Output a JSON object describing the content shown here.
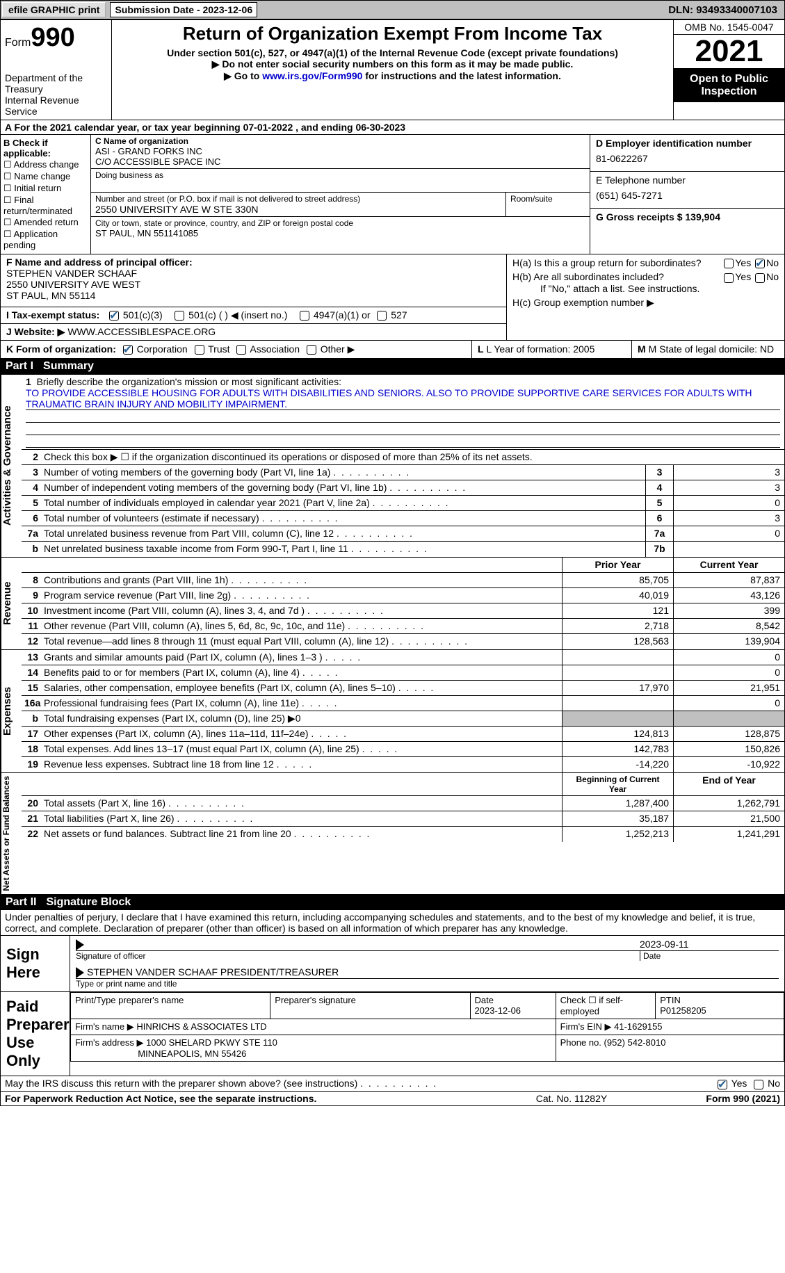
{
  "topbar": {
    "efile": "efile GRAPHIC print",
    "submission_label": "Submission Date - 2023-12-06",
    "dln": "DLN: 93493340007103"
  },
  "header": {
    "form_prefix": "Form",
    "form_number": "990",
    "dept": "Department of the Treasury",
    "irs": "Internal Revenue Service",
    "title": "Return of Organization Exempt From Income Tax",
    "subtitle": "Under section 501(c), 527, or 4947(a)(1) of the Internal Revenue Code (except private foundations)",
    "note1": "▶ Do not enter social security numbers on this form as it may be made public.",
    "note2_pre": "▶ Go to ",
    "note2_link": "www.irs.gov/Form990",
    "note2_post": " for instructions and the latest information.",
    "omb": "OMB No. 1545-0047",
    "year": "2021",
    "open": "Open to Public Inspection"
  },
  "row_a": "A For the 2021 calendar year, or tax year beginning 07-01-2022    , and ending 06-30-2023",
  "col_b": {
    "label": "B Check if applicable:",
    "items": [
      "Address change",
      "Name change",
      "Initial return",
      "Final return/terminated",
      "Amended return",
      "Application pending"
    ]
  },
  "col_c": {
    "name_label": "C Name of organization",
    "name1": "ASI - GRAND FORKS INC",
    "name2": "C/O ACCESSIBLE SPACE INC",
    "dba_label": "Doing business as",
    "addr_label": "Number and street (or P.O. box if mail is not delivered to street address)",
    "addr": "2550 UNIVERSITY AVE W STE 330N",
    "room_label": "Room/suite",
    "city_label": "City or town, state or province, country, and ZIP or foreign postal code",
    "city": "ST PAUL, MN  551141085"
  },
  "col_d": {
    "d_label": "D Employer identification number",
    "d_val": "81-0622267",
    "e_label": "E Telephone number",
    "e_val": "(651) 645-7271",
    "g_label": "G Gross receipts $ 139,904"
  },
  "section_f": {
    "f_label": "F Name and address of principal officer:",
    "f_name": "STEPHEN VANDER SCHAAF",
    "f_addr1": "2550 UNIVERSITY AVE WEST",
    "f_addr2": "ST PAUL, MN  55114",
    "i_label": "I    Tax-exempt status:",
    "i_501c3": "501(c)(3)",
    "i_501c": "501(c) (  ) ◀ (insert no.)",
    "i_4947": "4947(a)(1) or",
    "i_527": "527",
    "j_label": "J   Website: ▶",
    "j_val": "  WWW.ACCESSIBLESPACE.ORG"
  },
  "section_h": {
    "ha": "H(a)  Is this a group return for subordinates?",
    "hb": "H(b)  Are all subordinates included?",
    "hb_note": "If \"No,\" attach a list. See instructions.",
    "hc": "H(c)  Group exemption number ▶",
    "yes": "Yes",
    "no": "No"
  },
  "row_k": {
    "k_label": "K Form of organization:",
    "k_corp": "Corporation",
    "k_trust": "Trust",
    "k_assoc": "Association",
    "k_other": "Other ▶",
    "l_label": "L Year of formation: 2005",
    "m_label": "M State of legal domicile: ND"
  },
  "part1": {
    "header": "Part I",
    "title": "Summary",
    "vtab_act": "Activities & Governance",
    "vtab_rev": "Revenue",
    "vtab_exp": "Expenses",
    "vtab_net": "Net Assets or Fund Balances",
    "line1_label": "Briefly describe the organization's mission or most significant activities:",
    "line1_text": "TO PROVIDE ACCESSIBLE HOUSING FOR ADULTS WITH DISABILITIES AND SENIORS. ALSO TO PROVIDE SUPPORTIVE CARE SERVICES FOR ADULTS WITH TRAUMATIC BRAIN INJURY AND MOBILITY IMPAIRMENT.",
    "line2": "Check this box ▶ ☐  if the organization discontinued its operations or disposed of more than 25% of its net assets.",
    "lines": [
      {
        "n": "3",
        "d": "Number of voting members of the governing body (Part VI, line 1a)",
        "box": "3",
        "v": "3"
      },
      {
        "n": "4",
        "d": "Number of independent voting members of the governing body (Part VI, line 1b)",
        "box": "4",
        "v": "3"
      },
      {
        "n": "5",
        "d": "Total number of individuals employed in calendar year 2021 (Part V, line 2a)",
        "box": "5",
        "v": "0"
      },
      {
        "n": "6",
        "d": "Total number of volunteers (estimate if necessary)",
        "box": "6",
        "v": "3"
      },
      {
        "n": "7a",
        "d": "Total unrelated business revenue from Part VIII, column (C), line 12",
        "box": "7a",
        "v": "0"
      },
      {
        "n": "b",
        "d": "Net unrelated business taxable income from Form 990-T, Part I, line 11",
        "box": "7b",
        "v": ""
      }
    ],
    "col_headers": {
      "prior": "Prior Year",
      "current": "Current Year"
    },
    "rev_lines": [
      {
        "n": "8",
        "d": "Contributions and grants (Part VIII, line 1h)",
        "p": "85,705",
        "c": "87,837"
      },
      {
        "n": "9",
        "d": "Program service revenue (Part VIII, line 2g)",
        "p": "40,019",
        "c": "43,126"
      },
      {
        "n": "10",
        "d": "Investment income (Part VIII, column (A), lines 3, 4, and 7d )",
        "p": "121",
        "c": "399"
      },
      {
        "n": "11",
        "d": "Other revenue (Part VIII, column (A), lines 5, 6d, 8c, 9c, 10c, and 11e)",
        "p": "2,718",
        "c": "8,542"
      },
      {
        "n": "12",
        "d": "Total revenue—add lines 8 through 11 (must equal Part VIII, column (A), line 12)",
        "p": "128,563",
        "c": "139,904"
      }
    ],
    "exp_lines": [
      {
        "n": "13",
        "d": "Grants and similar amounts paid (Part IX, column (A), lines 1–3 )",
        "p": "",
        "c": "0"
      },
      {
        "n": "14",
        "d": "Benefits paid to or for members (Part IX, column (A), line 4)",
        "p": "",
        "c": "0"
      },
      {
        "n": "15",
        "d": "Salaries, other compensation, employee benefits (Part IX, column (A), lines 5–10)",
        "p": "17,970",
        "c": "21,951"
      },
      {
        "n": "16a",
        "d": "Professional fundraising fees (Part IX, column (A), line 11e)",
        "p": "",
        "c": "0"
      },
      {
        "n": "b",
        "d": "Total fundraising expenses (Part IX, column (D), line 25) ▶0",
        "p": "SHADE",
        "c": "SHADE"
      },
      {
        "n": "17",
        "d": "Other expenses (Part IX, column (A), lines 11a–11d, 11f–24e)",
        "p": "124,813",
        "c": "128,875"
      },
      {
        "n": "18",
        "d": "Total expenses. Add lines 13–17 (must equal Part IX, column (A), line 25)",
        "p": "142,783",
        "c": "150,826"
      },
      {
        "n": "19",
        "d": "Revenue less expenses. Subtract line 18 from line 12",
        "p": "-14,220",
        "c": "-10,922"
      }
    ],
    "net_headers": {
      "beg": "Beginning of Current Year",
      "end": "End of Year"
    },
    "net_lines": [
      {
        "n": "20",
        "d": "Total assets (Part X, line 16)",
        "p": "1,287,400",
        "c": "1,262,791"
      },
      {
        "n": "21",
        "d": "Total liabilities (Part X, line 26)",
        "p": "35,187",
        "c": "21,500"
      },
      {
        "n": "22",
        "d": "Net assets or fund balances. Subtract line 21 from line 20",
        "p": "1,252,213",
        "c": "1,241,291"
      }
    ]
  },
  "part2": {
    "header": "Part II",
    "title": "Signature Block",
    "declaration": "Under penalties of perjury, I declare that I have examined this return, including accompanying schedules and statements, and to the best of my knowledge and belief, it is true, correct, and complete. Declaration of preparer (other than officer) is based on all information of which preparer has any knowledge.",
    "sign_here": "Sign Here",
    "sig_date": "2023-09-11",
    "sig_officer": "Signature of officer",
    "sig_date_label": "Date",
    "sig_name": "STEPHEN VANDER SCHAAF  PRESIDENT/TREASURER",
    "sig_name_label": "Type or print name and title",
    "paid": "Paid Preparer Use Only",
    "prep_name_label": "Print/Type preparer's name",
    "prep_sig_label": "Preparer's signature",
    "prep_date_label": "Date",
    "prep_date": "2023-12-06",
    "prep_check": "Check ☐ if self-employed",
    "ptin_label": "PTIN",
    "ptin": "P01258205",
    "firm_name_label": "Firm's name      ▶",
    "firm_name": "HINRICHS & ASSOCIATES LTD",
    "firm_ein_label": "Firm's EIN ▶",
    "firm_ein": "41-1629155",
    "firm_addr_label": "Firm's address ▶",
    "firm_addr1": "1000 SHELARD PKWY STE 110",
    "firm_addr2": "MINNEAPOLIS, MN  55426",
    "phone_label": "Phone no.",
    "phone": "(952) 542-8010",
    "discuss": "May the IRS discuss this return with the preparer shown above? (see instructions)"
  },
  "footer": {
    "left": "For Paperwork Reduction Act Notice, see the separate instructions.",
    "mid": "Cat. No. 11282Y",
    "right": "Form 990 (2021)"
  }
}
